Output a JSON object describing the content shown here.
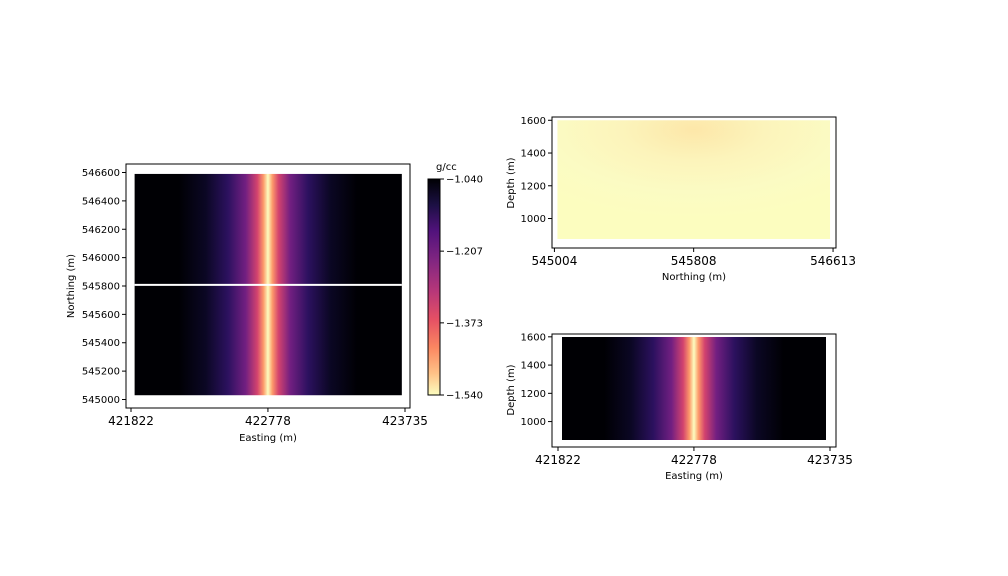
{
  "chart_data": [
    {
      "type": "heatmap",
      "name": "plan-view",
      "xlabel": "Easting (m)",
      "ylabel": "Northing (m)",
      "xlim": [
        421822,
        423735
      ],
      "ylim": [
        544940,
        546660
      ],
      "data_extent_x": [
        421880,
        423680
      ],
      "data_extent_y": [
        545030,
        546590
      ],
      "xticks": [
        421822,
        422778,
        423735
      ],
      "yticks": [
        545000,
        545200,
        545400,
        545600,
        545800,
        546000,
        546200,
        546400,
        546600
      ],
      "anomaly_center_easting": 422778,
      "section_line_northing": 545808,
      "colorbar": {
        "label": "g/cc",
        "vmin": -1.54,
        "vmax": -1.04,
        "ticks": [
          "-1.040",
          "-1.207",
          "-1.373",
          "-1.540"
        ],
        "colormap": "magma (reversed)"
      }
    },
    {
      "type": "heatmap",
      "name": "section-northing",
      "xlabel": "Northing (m)",
      "ylabel": "Depth (m)",
      "xlim": [
        544990,
        546630
      ],
      "ylim": [
        820,
        1620
      ],
      "data_extent_x": [
        545004,
        546613
      ],
      "data_extent_y": [
        875,
        1600
      ],
      "xticks": [
        545004,
        545808,
        546613
      ],
      "yticks": [
        1000,
        1200,
        1400,
        1600
      ],
      "note": "pale uniform field, slightly darker near top centre"
    },
    {
      "type": "heatmap",
      "name": "section-easting",
      "xlabel": "Easting (m)",
      "ylabel": "Depth (m)",
      "xlim": [
        421822,
        423735
      ],
      "ylim": [
        820,
        1620
      ],
      "data_extent_x": [
        421822,
        423735
      ],
      "data_extent_y": [
        875,
        1600
      ],
      "xticks": [
        421822,
        422778,
        423735
      ],
      "yticks": [
        1000,
        1200,
        1400,
        1600
      ],
      "anomaly_center_easting": 422778
    }
  ],
  "colors": {
    "background": "#000004",
    "low": "#fcfdbf",
    "axis": "#000000",
    "section_line": "#ffffff"
  }
}
